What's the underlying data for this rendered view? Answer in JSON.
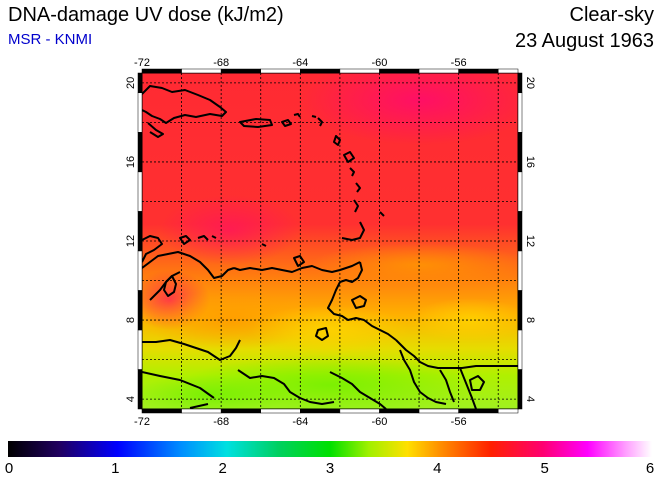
{
  "header": {
    "title": "DNA-damage UV dose (kJ/m2)",
    "source": "MSR - KNMI",
    "condition": "Clear-sky",
    "date": "23 August 1963"
  },
  "colors": {
    "source_text": "#0000cc"
  },
  "map": {
    "region": "Caribbean / northern South America",
    "lon_range": [
      -72,
      -53
    ],
    "lat_range": [
      3.5,
      20.5
    ],
    "lon_ticks": [
      "-72",
      "-68",
      "-64",
      "-60",
      "-56"
    ],
    "lat_ticks": [
      "4",
      "8",
      "12",
      "16",
      "20"
    ],
    "grid": true
  },
  "colorbar": {
    "min": 0,
    "max": 6,
    "labels": [
      "0",
      "1",
      "2",
      "3",
      "4",
      "5",
      "6"
    ]
  }
}
